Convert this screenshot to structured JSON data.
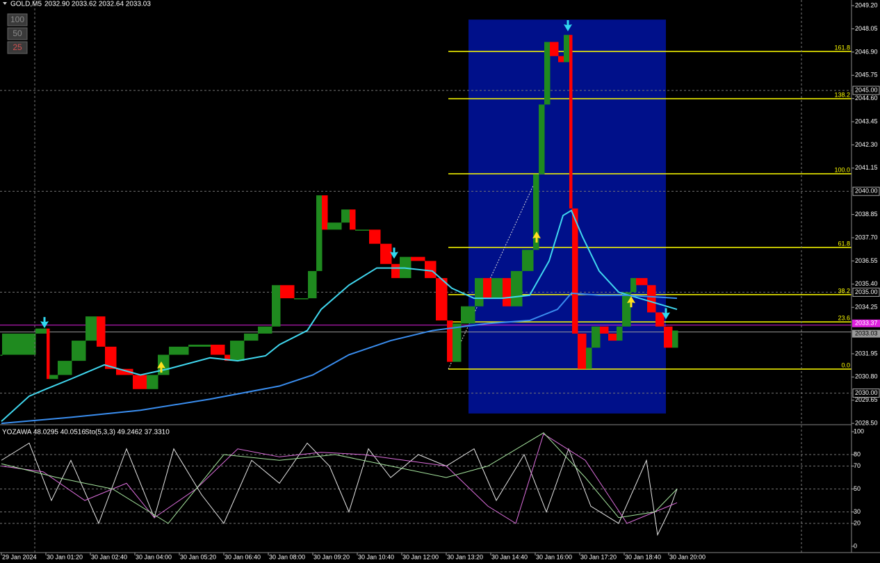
{
  "chart_data": [
    {
      "type": "bars",
      "title": "GOLD,M5",
      "quote": "2032.90 2033.62 2032.64 2033.03",
      "buttons": [
        "100",
        "50",
        "25"
      ],
      "xlim": [
        -0.5,
        305.75
      ],
      "ylim": [
        2028.47,
        2049.48
      ],
      "xticks": [
        {
          "value": 0,
          "label": "29 Jan 2024"
        },
        {
          "value": 16,
          "label": "30 Jan 01:20"
        },
        {
          "value": 32,
          "label": "30 Jan 02:40"
        },
        {
          "value": 48,
          "label": "30 Jan 04:00"
        },
        {
          "value": 64,
          "label": "30 Jan 05:20"
        },
        {
          "value": 80,
          "label": "30 Jan 06:40"
        },
        {
          "value": 96,
          "label": "30 Jan 08:00"
        },
        {
          "value": 112,
          "label": "30 Jan 09:20"
        },
        {
          "value": 128,
          "label": "30 Jan 10:40"
        },
        {
          "value": 144,
          "label": "30 Jan 12:00"
        },
        {
          "value": 160,
          "label": "30 Jan 13:20"
        },
        {
          "value": 176,
          "label": "30 Jan 14:40"
        },
        {
          "value": 192,
          "label": "30 Jan 16:00"
        },
        {
          "value": 208,
          "label": "30 Jan 17:20"
        },
        {
          "value": 224,
          "label": "30 Jan 18:40"
        },
        {
          "value": 240,
          "label": "30 Jan 20:00"
        }
      ],
      "yticks": [
        {
          "value": 2049.2,
          "label": "2049.20"
        },
        {
          "value": 2048.05,
          "label": "2048.05"
        },
        {
          "value": 2046.9,
          "label": "2046.90"
        },
        {
          "value": 2045.75,
          "label": "2045.75"
        },
        {
          "value": 2044.6,
          "label": "2044.60"
        },
        {
          "value": 2043.45,
          "label": "2043.45"
        },
        {
          "value": 2042.3,
          "label": "2042.30"
        },
        {
          "value": 2041.15,
          "label": "2041.15"
        },
        {
          "value": 2038.85,
          "label": "2038.85"
        },
        {
          "value": 2037.7,
          "label": "2037.70"
        },
        {
          "value": 2036.55,
          "label": "2036.55"
        },
        {
          "value": 2035.4,
          "label": "2035.40"
        },
        {
          "value": 2034.25,
          "label": "2034.25"
        },
        {
          "value": 2031.95,
          "label": "2031.95"
        },
        {
          "value": 2030.8,
          "label": "2030.80"
        },
        {
          "value": 2029.65,
          "label": "2029.65"
        },
        {
          "value": 2028.5,
          "label": "2028.50"
        }
      ],
      "grid_levels": [
        {
          "value": 2045,
          "label": "2045.00"
        },
        {
          "value": 2040,
          "label": "2040.00"
        },
        {
          "value": 2035,
          "label": "2035.00"
        },
        {
          "value": 2030,
          "label": "2030.00"
        }
      ],
      "price_lines": [
        {
          "value": 2033.37,
          "label": "2033.37",
          "color": "#e020e0"
        },
        {
          "value": 2033.03,
          "label": "2033.03",
          "color": "#9a9a9a"
        }
      ],
      "highlight_box": {
        "x": [
          168,
          239
        ],
        "y": [
          2028.99,
          2048.51
        ],
        "color": "#00108a"
      },
      "fib_levels": [
        {
          "value": 2046.93,
          "label": "161.8"
        },
        {
          "value": 2044.59,
          "label": "138.2"
        },
        {
          "value": 2040.87,
          "label": "100.0"
        },
        {
          "value": 2037.22,
          "label": "61.8"
        },
        {
          "value": 2034.88,
          "label": "38.2"
        },
        {
          "value": 2033.53,
          "label": "23.6"
        },
        {
          "value": 2031.19,
          "label": "0.0"
        }
      ],
      "fib_anchor_x": [
        160.75,
        193.25
      ],
      "fib_color": "#ffff00",
      "up_color": "#1f8a1f",
      "down_color": "#ff0000",
      "x": [
        0,
        12,
        16,
        17,
        20,
        25,
        30,
        34,
        37,
        41,
        47,
        52,
        56,
        60,
        67,
        75,
        80,
        82,
        87,
        92,
        97,
        100,
        105,
        110,
        113,
        115,
        117,
        122,
        125,
        127,
        132,
        136,
        140,
        143,
        147,
        152,
        156,
        160,
        162,
        165,
        170,
        173,
        176,
        180,
        183,
        187,
        191,
        193,
        195,
        197,
        200,
        202,
        204,
        205,
        207,
        210,
        212,
        215,
        218,
        221,
        223,
        226,
        228,
        232,
        235,
        238,
        241,
        243
      ],
      "values": [
        2031.9,
        2032.95,
        2033.2,
        2030.7,
        2030.9,
        2031.6,
        2032.6,
        2033.8,
        2032.3,
        2031.2,
        2030.9,
        2030.2,
        2030.9,
        2031.9,
        2032.3,
        2032.4,
        2031.9,
        2031.6,
        2032.6,
        2032.95,
        2033.3,
        2035.35,
        2034.7,
        2034.7,
        2036.05,
        2039.8,
        2038.1,
        2038.45,
        2039.1,
        2038.1,
        2038.1,
        2037.4,
        2036.4,
        2035.7,
        2036.75,
        2036.55,
        2035.7,
        2033.6,
        2031.55,
        2033.45,
        2034.3,
        2035.7,
        2034.7,
        2035.7,
        2034.3,
        2036.05,
        2037.1,
        2040.85,
        2044.3,
        2047.4,
        2046.7,
        2046.4,
        2047.75,
        2039.15,
        2032.95,
        2031.2,
        2032.25,
        2033.3,
        2032.95,
        2032.6,
        2033.3,
        2035.0,
        2035.7,
        2035.35,
        2034.0,
        2033.3,
        2032.25,
        2033.1
      ],
      "overlays": [
        {
          "color": "#40d8f0",
          "x": [
            0,
            10,
            16,
            25,
            37,
            50,
            60,
            75,
            85,
            95,
            100,
            110,
            115,
            125,
            135,
            145,
            155,
            162,
            170,
            180,
            190,
            197,
            202,
            205,
            209,
            215,
            222,
            232,
            243
          ],
          "values": [
            2028.6,
            2029.85,
            2030.2,
            2030.7,
            2031.4,
            2030.9,
            2031.2,
            2031.75,
            2031.6,
            2031.85,
            2032.4,
            2033.1,
            2034.15,
            2035.35,
            2036.2,
            2036.2,
            2036.05,
            2035.2,
            2034.7,
            2034.7,
            2034.85,
            2036.55,
            2038.8,
            2039.05,
            2037.75,
            2036.05,
            2035.0,
            2034.6,
            2034.15
          ]
        },
        {
          "color": "#3a8ef0",
          "x": [
            0,
            25,
            50,
            75,
            100,
            112,
            125,
            140,
            155,
            175,
            190,
            200,
            205,
            215,
            225,
            243
          ],
          "values": [
            2028.5,
            2028.8,
            2029.15,
            2029.7,
            2030.35,
            2030.9,
            2031.9,
            2032.6,
            2033.1,
            2033.45,
            2033.6,
            2034.15,
            2034.95,
            2034.85,
            2034.85,
            2034.7
          ]
        }
      ],
      "arrows": [
        {
          "x": 15.5,
          "value": 2033.46,
          "direction": "down"
        },
        {
          "x": 141.25,
          "value": 2036.9,
          "direction": "down"
        },
        {
          "x": 203.75,
          "value": 2048.17,
          "direction": "down"
        },
        {
          "x": 239,
          "value": 2033.9,
          "direction": "down"
        },
        {
          "x": 57.5,
          "value": 2031.33,
          "direction": "up"
        },
        {
          "x": 192.5,
          "value": 2037.77,
          "direction": "up"
        },
        {
          "x": 226.5,
          "value": 2034.56,
          "direction": "up"
        }
      ],
      "arrow_colors": {
        "down": "#30d8f0",
        "up": "#ffe020"
      }
    },
    {
      "type": "line",
      "labels": [
        "YOZAWA 48.0295 40.0516",
        "Sto(5,3,3) 49.2462 37.3310"
      ],
      "xlim": [
        -0.5,
        305.75
      ],
      "ylim": [
        -5.45,
        104.85
      ],
      "yticks": [
        0,
        20,
        30,
        50,
        70,
        80,
        100
      ],
      "grid_at": [
        20,
        30,
        50,
        70,
        80
      ],
      "series": [
        {
          "color": "#e8e8e8",
          "x": [
            0,
            10,
            18,
            25,
            35,
            45,
            55,
            62,
            72,
            80,
            90,
            100,
            110,
            118,
            125,
            132,
            140,
            150,
            160,
            170,
            178,
            188,
            196,
            204,
            212,
            222,
            232,
            236,
            240,
            243
          ],
          "values": [
            75,
            90,
            40,
            75,
            20,
            85,
            25,
            85,
            45,
            20,
            75,
            55,
            90,
            70,
            30,
            85,
            60,
            80,
            70,
            85,
            40,
            80,
            30,
            85,
            35,
            20,
            75,
            10,
            30,
            50
          ]
        },
        {
          "color": "#e070e0",
          "x": [
            0,
            15,
            30,
            45,
            55,
            70,
            85,
            100,
            115,
            130,
            145,
            160,
            175,
            185,
            195,
            210,
            225,
            240,
            243
          ],
          "values": [
            70,
            65,
            40,
            55,
            25,
            50,
            85,
            78,
            82,
            80,
            75,
            70,
            35,
            20,
            98,
            75,
            20,
            35,
            38
          ]
        },
        {
          "color": "#a8e8a0",
          "x": [
            0,
            20,
            40,
            60,
            80,
            100,
            120,
            140,
            160,
            175,
            195,
            210,
            222,
            235,
            243
          ],
          "values": [
            72,
            60,
            50,
            20,
            80,
            75,
            80,
            70,
            60,
            70,
            99,
            60,
            25,
            30,
            50
          ]
        }
      ]
    }
  ]
}
